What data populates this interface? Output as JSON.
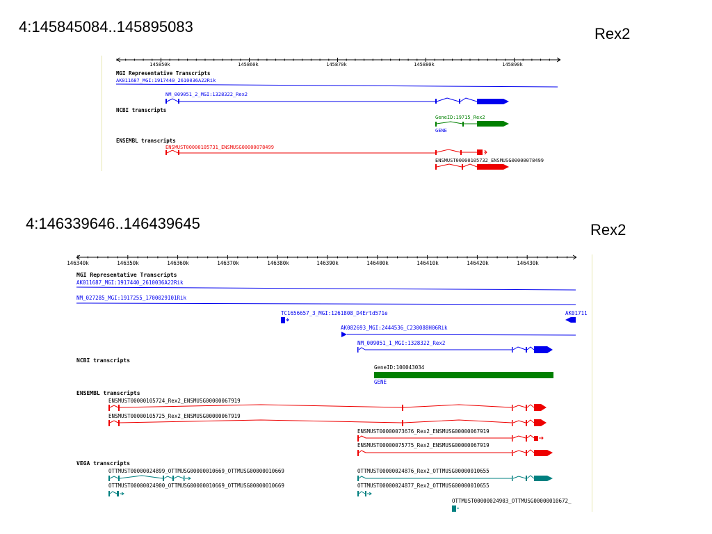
{
  "slides": [
    {
      "coord_title": "4:145845084..145895083",
      "gene_label": "Rex2",
      "ruler": {
        "ticks": [
          "145850k",
          "145860k",
          "145870k",
          "145880k",
          "145890k"
        ]
      },
      "sections": {
        "mgi": "MGI Representative Transcripts",
        "ncbi": "NCBI transcripts",
        "ensembl": "ENSEMBL transcripts"
      },
      "tracks": {
        "mgi_1": "AK011687_MGI:1917440_2610036A22Rik",
        "mgi_2": "NM_009051_2_MGI:1328322_Rex2",
        "ncbi_gene": "GeneID:19715_Rex2",
        "ncbi_gene_type": "GENE",
        "ens_1": "ENSMUST00000105731_ENSMUSG00000078499",
        "ens_2": "ENSMUST00000105732_ENSMUSG00000078499"
      },
      "colors": {
        "mgi": "#0000ee",
        "ncbi": "#008000",
        "ensembl": "#ee0000"
      }
    },
    {
      "coord_title": "4:146339646..146439645",
      "gene_label": "Rex2",
      "ruler": {
        "ticks": [
          "146340k",
          "146350k",
          "146360k",
          "146370k",
          "146380k",
          "146390k",
          "146400k",
          "146410k",
          "146420k",
          "146430k"
        ]
      },
      "sections": {
        "mgi": "MGI Representative Transcripts",
        "ncbi": "NCBI transcripts",
        "ensembl": "ENSEMBL transcripts",
        "vega": "VEGA transcripts"
      },
      "tracks": {
        "mgi_1": "AK011687_MGI:1917440_2610036A22Rik",
        "mgi_2": "NM_027285_MGI:1917255_1700029I01Rik",
        "mgi_3": "TC1656657_3_MGI:1261808_D4Ertd571e",
        "mgi_3b": "AK01711",
        "mgi_4": "AK082693_MGI:2444536_C230088H06Rik",
        "mgi_5": "NM_009051_1_MGI:1328322_Rex2",
        "ncbi_gene": "GeneID:100043034",
        "ncbi_gene_type": "GENE",
        "ens_1": "ENSMUST00000105724_Rex2_ENSMUSG00000067919",
        "ens_2": "ENSMUST00000105725_Rex2_ENSMUSG00000067919",
        "ens_3": "ENSMUST00000073676_Rex2_ENSMUSG00000067919",
        "ens_4": "ENSMUST00000075775_Rex2_ENSMUSG00000067919",
        "vega_1": "OTTMUST00000024899_OTTMUSG00000010669_OTTMUSG00000010669",
        "vega_2": "OTTMUST00000024900_OTTMUSG00000010669_OTTMUSG00000010669",
        "vega_3": "OTTMUST00000024876_Rex2_OTTMUSG00000010655",
        "vega_4": "OTTMUST00000024877_Rex2_OTTMUSG00000010655",
        "vega_5": "OTTMUST00000024903_OTTMUSG00000010672_"
      },
      "colors": {
        "mgi": "#0000ee",
        "ncbi": "#008000",
        "ensembl": "#ee0000",
        "vega": "#008080"
      }
    }
  ]
}
